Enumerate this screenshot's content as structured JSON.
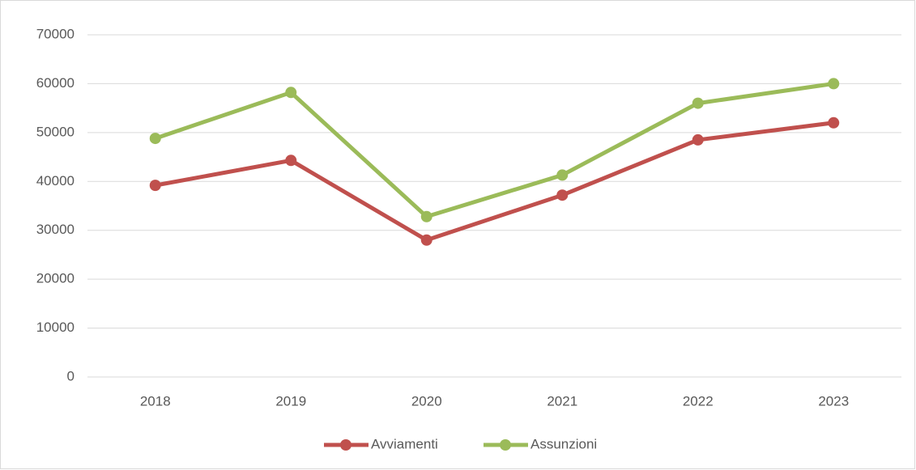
{
  "chart_data": {
    "type": "line",
    "categories": [
      "2018",
      "2019",
      "2020",
      "2021",
      "2022",
      "2023"
    ],
    "series": [
      {
        "name": "Avviamenti",
        "color": "#c0504d",
        "values": [
          39200,
          44300,
          28000,
          37200,
          48500,
          52000
        ]
      },
      {
        "name": "Assunzioni",
        "color": "#9bbb59",
        "values": [
          48800,
          58200,
          32800,
          41300,
          56000,
          60000
        ]
      }
    ],
    "ylim": [
      0,
      70000
    ],
    "yticks": [
      0,
      10000,
      20000,
      30000,
      40000,
      50000,
      60000,
      70000
    ],
    "grid": true,
    "legend": "bottom"
  }
}
